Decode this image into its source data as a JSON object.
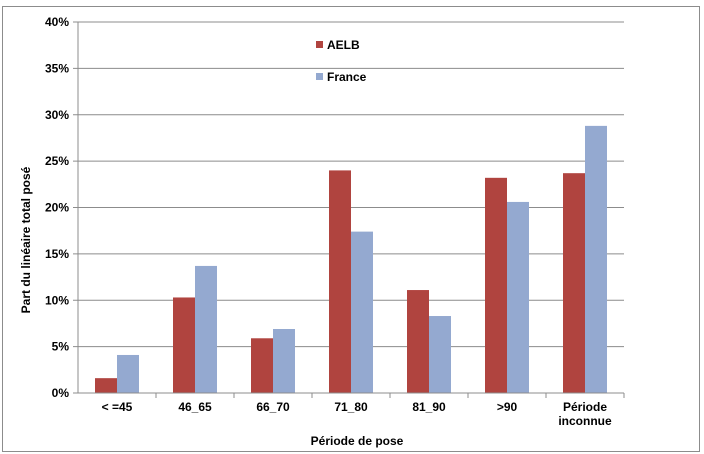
{
  "chart_data": {
    "type": "bar",
    "categories": [
      "< =45",
      "46_65",
      "66_70",
      "71_80",
      "81_90",
      ">90",
      "Période\ninconnue"
    ],
    "series": [
      {
        "name": "AELB",
        "values": [
          1.6,
          10.3,
          5.9,
          24.0,
          11.1,
          23.2,
          23.7
        ],
        "color": "#b0443f"
      },
      {
        "name": "France",
        "values": [
          4.1,
          13.7,
          6.9,
          17.4,
          8.3,
          20.6,
          28.8
        ],
        "color": "#94a9d0"
      }
    ],
    "xlabel": "Période de pose",
    "ylabel": "Part du linéaire total posé",
    "ylim": [
      0,
      40
    ],
    "yticks": [
      "0%",
      "5%",
      "10%",
      "15%",
      "20%",
      "25%",
      "30%",
      "35%",
      "40%"
    ],
    "grid": true,
    "legend_position": "top-center"
  }
}
